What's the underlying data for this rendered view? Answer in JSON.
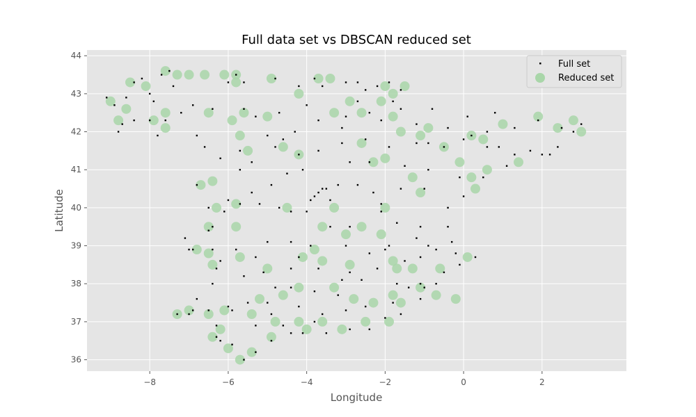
{
  "chart_data": {
    "type": "scatter",
    "title": "Full data set vs DBSCAN reduced set",
    "xlabel": "Longitude",
    "ylabel": "Latitude",
    "xlim": [
      -9.6,
      4.15
    ],
    "ylim": [
      35.7,
      44.15
    ],
    "xticks": [
      -8,
      -6,
      -4,
      -2,
      0,
      2
    ],
    "xtick_labels": [
      "−8",
      "−6",
      "−4",
      "−2",
      "0",
      "2"
    ],
    "yticks": [
      36,
      37,
      38,
      39,
      40,
      41,
      42,
      43,
      44
    ],
    "ytick_labels": [
      "36",
      "37",
      "38",
      "39",
      "40",
      "41",
      "42",
      "43",
      "44"
    ],
    "grid": true,
    "legend_position": "top-right",
    "background_color": "#e5e5e5",
    "grid_color": "#ffffff",
    "series": [
      {
        "name": "Full set",
        "color": "#000000",
        "marker": "small-square",
        "points": [
          [
            -9.1,
            42.9
          ],
          [
            -8.9,
            42.7
          ],
          [
            -8.6,
            42.9
          ],
          [
            -8.4,
            43.3
          ],
          [
            -8.2,
            43.4
          ],
          [
            -8.0,
            43.0
          ],
          [
            -7.7,
            43.5
          ],
          [
            -7.5,
            43.6
          ],
          [
            -7.9,
            42.8
          ],
          [
            -8.4,
            42.3
          ],
          [
            -8.7,
            42.2
          ],
          [
            -8.8,
            42.0
          ],
          [
            -8.0,
            42.3
          ],
          [
            -7.6,
            42.3
          ],
          [
            -7.2,
            42.5
          ],
          [
            -7.4,
            43.2
          ],
          [
            -6.9,
            42.7
          ],
          [
            -6.4,
            42.6
          ],
          [
            -6.0,
            43.3
          ],
          [
            -5.8,
            43.5
          ],
          [
            -5.6,
            43.3
          ],
          [
            -5.6,
            42.6
          ],
          [
            -5.3,
            42.4
          ],
          [
            -4.8,
            43.4
          ],
          [
            -4.2,
            43.2
          ],
          [
            -3.8,
            43.4
          ],
          [
            -3.6,
            43.2
          ],
          [
            -3.0,
            43.3
          ],
          [
            -2.7,
            43.3
          ],
          [
            -2.5,
            43.1
          ],
          [
            -2.2,
            43.2
          ],
          [
            -1.9,
            43.3
          ],
          [
            -1.6,
            43.1
          ],
          [
            -1.8,
            42.8
          ],
          [
            -1.6,
            42.6
          ],
          [
            -2.4,
            42.5
          ],
          [
            -2.7,
            42.8
          ],
          [
            -3.0,
            42.4
          ],
          [
            -3.7,
            42.3
          ],
          [
            -4.3,
            42.0
          ],
          [
            -4.6,
            41.8
          ],
          [
            -5.0,
            41.9
          ],
          [
            -5.7,
            41.5
          ],
          [
            -5.7,
            41.0
          ],
          [
            -6.2,
            41.3
          ],
          [
            -4.8,
            41.6
          ],
          [
            -4.2,
            41.4
          ],
          [
            -3.7,
            41.5
          ],
          [
            -3.1,
            41.7
          ],
          [
            -2.5,
            41.8
          ],
          [
            -1.9,
            41.6
          ],
          [
            -1.2,
            41.7
          ],
          [
            -0.9,
            41.7
          ],
          [
            -0.5,
            41.6
          ],
          [
            0.0,
            41.8
          ],
          [
            0.6,
            41.6
          ],
          [
            0.9,
            41.6
          ],
          [
            1.3,
            41.4
          ],
          [
            1.7,
            41.5
          ],
          [
            2.0,
            41.4
          ],
          [
            2.2,
            41.4
          ],
          [
            2.4,
            41.6
          ],
          [
            2.8,
            42.0
          ],
          [
            3.0,
            42.2
          ],
          [
            2.5,
            42.1
          ],
          [
            1.9,
            42.3
          ],
          [
            1.3,
            42.1
          ],
          [
            0.6,
            42.0
          ],
          [
            0.2,
            41.9
          ],
          [
            1.1,
            41.1
          ],
          [
            0.5,
            40.8
          ],
          [
            0.0,
            40.3
          ],
          [
            -0.4,
            40.0
          ],
          [
            -0.4,
            39.5
          ],
          [
            -0.3,
            39.1
          ],
          [
            -0.2,
            38.8
          ],
          [
            -0.5,
            38.3
          ],
          [
            -0.7,
            38.0
          ],
          [
            -1.1,
            37.6
          ],
          [
            -1.4,
            37.9
          ],
          [
            -1.1,
            38.0
          ],
          [
            -1.8,
            37.5
          ],
          [
            -2.4,
            36.8
          ],
          [
            -2.9,
            36.8
          ],
          [
            -3.5,
            36.7
          ],
          [
            -4.1,
            36.7
          ],
          [
            -4.4,
            36.7
          ],
          [
            -4.9,
            36.5
          ],
          [
            -5.3,
            36.2
          ],
          [
            -5.6,
            36.0
          ],
          [
            -5.9,
            36.4
          ],
          [
            -6.2,
            36.5
          ],
          [
            -6.3,
            36.6
          ],
          [
            -6.3,
            36.9
          ],
          [
            -6.0,
            37.4
          ],
          [
            -5.9,
            37.3
          ],
          [
            -5.5,
            37.5
          ],
          [
            -5.0,
            37.5
          ],
          [
            -4.8,
            37.9
          ],
          [
            -4.4,
            37.9
          ],
          [
            -3.8,
            37.8
          ],
          [
            -3.6,
            37.2
          ],
          [
            -3.0,
            37.3
          ],
          [
            -2.5,
            37.4
          ],
          [
            -7.0,
            37.2
          ],
          [
            -6.9,
            37.3
          ],
          [
            -6.5,
            37.3
          ],
          [
            -7.3,
            37.2
          ],
          [
            -6.8,
            37.6
          ],
          [
            -6.4,
            38.0
          ],
          [
            -6.3,
            38.4
          ],
          [
            -6.4,
            38.9
          ],
          [
            -6.9,
            38.9
          ],
          [
            -7.0,
            38.9
          ],
          [
            -6.5,
            39.4
          ],
          [
            -6.4,
            39.5
          ],
          [
            -6.1,
            39.9
          ],
          [
            -6.5,
            40.0
          ],
          [
            -6.8,
            40.6
          ],
          [
            -6.0,
            40.2
          ],
          [
            -5.7,
            40.1
          ],
          [
            -5.2,
            40.1
          ],
          [
            -4.7,
            40.0
          ],
          [
            -4.4,
            39.9
          ],
          [
            -4.0,
            39.9
          ],
          [
            -3.7,
            40.4
          ],
          [
            -3.6,
            40.5
          ],
          [
            -3.8,
            40.3
          ],
          [
            -3.5,
            40.5
          ],
          [
            -3.4,
            40.2
          ],
          [
            -3.9,
            40.2
          ],
          [
            -3.2,
            40.6
          ],
          [
            -2.7,
            40.6
          ],
          [
            -2.1,
            40.1
          ],
          [
            -2.1,
            39.9
          ],
          [
            -1.7,
            39.6
          ],
          [
            -1.1,
            39.5
          ],
          [
            -0.9,
            39.0
          ],
          [
            -1.9,
            39.0
          ],
          [
            -2.4,
            38.8
          ],
          [
            -3.0,
            39.0
          ],
          [
            -3.9,
            39.0
          ],
          [
            -4.4,
            39.1
          ],
          [
            -5.0,
            39.1
          ],
          [
            -5.3,
            38.7
          ],
          [
            -5.6,
            38.2
          ],
          [
            -5.1,
            38.3
          ],
          [
            -4.4,
            38.4
          ],
          [
            -3.7,
            38.4
          ],
          [
            -3.1,
            38.1
          ],
          [
            -2.6,
            38.1
          ],
          [
            -2.2,
            38.4
          ],
          [
            -1.5,
            38.6
          ],
          [
            -1.1,
            38.7
          ],
          [
            -0.7,
            38.9
          ],
          [
            -4.7,
            42.5
          ],
          [
            -4.0,
            42.7
          ],
          [
            -3.1,
            42.1
          ],
          [
            -2.1,
            42.3
          ],
          [
            -1.2,
            42.2
          ],
          [
            -0.4,
            42.1
          ],
          [
            -0.8,
            42.6
          ],
          [
            0.1,
            42.4
          ],
          [
            0.8,
            42.5
          ],
          [
            -7.8,
            41.9
          ],
          [
            -6.8,
            41.9
          ],
          [
            -6.6,
            41.6
          ],
          [
            -5.4,
            41.2
          ],
          [
            -4.5,
            40.9
          ],
          [
            -4.1,
            41.0
          ],
          [
            -2.9,
            41.2
          ],
          [
            -2.4,
            41.2
          ],
          [
            -1.5,
            41.1
          ],
          [
            -0.9,
            41.0
          ],
          [
            -0.1,
            40.8
          ],
          [
            -1.0,
            40.5
          ],
          [
            -1.6,
            40.5
          ],
          [
            -2.3,
            40.4
          ],
          [
            -4.9,
            40.6
          ],
          [
            -5.4,
            40.4
          ],
          [
            -7.1,
            39.2
          ],
          [
            -6.2,
            38.6
          ],
          [
            -5.8,
            38.9
          ],
          [
            -4.2,
            38.7
          ],
          [
            -3.4,
            39.5
          ],
          [
            -2.9,
            39.5
          ],
          [
            -2.0,
            38.9
          ],
          [
            -1.2,
            39.2
          ],
          [
            0.3,
            38.7
          ],
          [
            -0.1,
            38.5
          ],
          [
            -1.0,
            37.9
          ],
          [
            -1.7,
            38.0
          ],
          [
            -2.9,
            38.3
          ],
          [
            -3.2,
            37.7
          ],
          [
            -4.2,
            37.4
          ],
          [
            -4.9,
            37.2
          ],
          [
            -5.3,
            36.9
          ],
          [
            -4.6,
            36.9
          ],
          [
            -3.8,
            37.0
          ],
          [
            -2.0,
            37.1
          ],
          [
            -1.6,
            37.2
          ]
        ]
      },
      {
        "name": "Reduced set",
        "color": "#a9d6a9",
        "marker": "circle",
        "points": [
          [
            -9.0,
            42.8
          ],
          [
            -8.5,
            43.3
          ],
          [
            -8.1,
            43.2
          ],
          [
            -7.6,
            43.6
          ],
          [
            -7.3,
            43.5
          ],
          [
            -7.0,
            43.5
          ],
          [
            -6.6,
            43.5
          ],
          [
            -6.1,
            43.5
          ],
          [
            -5.8,
            43.5
          ],
          [
            -5.8,
            43.3
          ],
          [
            -4.9,
            43.4
          ],
          [
            -4.2,
            43.0
          ],
          [
            -3.7,
            43.4
          ],
          [
            -3.4,
            43.4
          ],
          [
            -2.0,
            43.2
          ],
          [
            -1.8,
            43.0
          ],
          [
            -1.5,
            43.2
          ],
          [
            -2.9,
            42.8
          ],
          [
            -2.6,
            42.5
          ],
          [
            -2.1,
            42.8
          ],
          [
            -1.8,
            42.4
          ],
          [
            -1.6,
            42.0
          ],
          [
            -3.3,
            42.5
          ],
          [
            -5.0,
            42.4
          ],
          [
            -5.6,
            42.5
          ],
          [
            -5.9,
            42.3
          ],
          [
            -7.6,
            42.5
          ],
          [
            -7.9,
            42.3
          ],
          [
            -7.6,
            42.1
          ],
          [
            -8.6,
            42.6
          ],
          [
            -8.8,
            42.3
          ],
          [
            -6.5,
            42.5
          ],
          [
            -5.7,
            41.9
          ],
          [
            -5.5,
            41.5
          ],
          [
            -4.6,
            41.6
          ],
          [
            -4.2,
            41.4
          ],
          [
            -2.6,
            41.7
          ],
          [
            -2.3,
            41.2
          ],
          [
            -2.0,
            41.3
          ],
          [
            -1.1,
            41.9
          ],
          [
            -0.9,
            42.1
          ],
          [
            -0.5,
            41.6
          ],
          [
            0.2,
            41.9
          ],
          [
            0.5,
            41.8
          ],
          [
            1.9,
            42.4
          ],
          [
            2.4,
            42.1
          ],
          [
            2.8,
            42.3
          ],
          [
            3.0,
            42.0
          ],
          [
            1.0,
            42.2
          ],
          [
            1.4,
            41.2
          ],
          [
            -0.1,
            41.2
          ],
          [
            0.6,
            41.0
          ],
          [
            0.2,
            40.8
          ],
          [
            -1.3,
            40.8
          ],
          [
            -1.1,
            40.4
          ],
          [
            0.3,
            40.5
          ],
          [
            -6.7,
            40.6
          ],
          [
            -6.4,
            40.7
          ],
          [
            -6.3,
            40.0
          ],
          [
            -5.8,
            40.1
          ],
          [
            -4.5,
            40.0
          ],
          [
            -3.3,
            40.0
          ],
          [
            -2.0,
            40.0
          ],
          [
            -2.6,
            39.5
          ],
          [
            -2.1,
            39.3
          ],
          [
            -3.0,
            39.3
          ],
          [
            -3.6,
            39.5
          ],
          [
            -3.8,
            38.9
          ],
          [
            -4.1,
            38.7
          ],
          [
            -5.0,
            38.4
          ],
          [
            -5.8,
            39.5
          ],
          [
            -6.5,
            39.5
          ],
          [
            -6.8,
            38.9
          ],
          [
            -6.5,
            38.8
          ],
          [
            -6.4,
            38.5
          ],
          [
            -5.7,
            38.7
          ],
          [
            -3.6,
            38.6
          ],
          [
            -2.9,
            38.5
          ],
          [
            -1.8,
            38.6
          ],
          [
            -1.7,
            38.4
          ],
          [
            -1.3,
            38.4
          ],
          [
            -0.6,
            38.4
          ],
          [
            0.1,
            38.7
          ],
          [
            -1.1,
            37.9
          ],
          [
            -1.8,
            37.7
          ],
          [
            -0.7,
            37.7
          ],
          [
            -0.2,
            37.6
          ],
          [
            -1.6,
            37.5
          ],
          [
            -2.3,
            37.5
          ],
          [
            -2.8,
            37.6
          ],
          [
            -3.3,
            37.9
          ],
          [
            -4.2,
            37.9
          ],
          [
            -4.6,
            37.7
          ],
          [
            -5.2,
            37.6
          ],
          [
            -5.4,
            37.2
          ],
          [
            -4.8,
            37.0
          ],
          [
            -4.2,
            37.0
          ],
          [
            -3.6,
            37.0
          ],
          [
            -2.5,
            37.0
          ],
          [
            -1.9,
            37.0
          ],
          [
            -3.1,
            36.8
          ],
          [
            -4.0,
            36.8
          ],
          [
            -4.9,
            36.6
          ],
          [
            -5.4,
            36.2
          ],
          [
            -5.7,
            36.0
          ],
          [
            -6.0,
            36.3
          ],
          [
            -6.4,
            36.6
          ],
          [
            -6.2,
            36.8
          ],
          [
            -6.5,
            37.2
          ],
          [
            -7.3,
            37.2
          ],
          [
            -7.0,
            37.3
          ],
          [
            -6.1,
            37.3
          ]
        ]
      }
    ]
  }
}
